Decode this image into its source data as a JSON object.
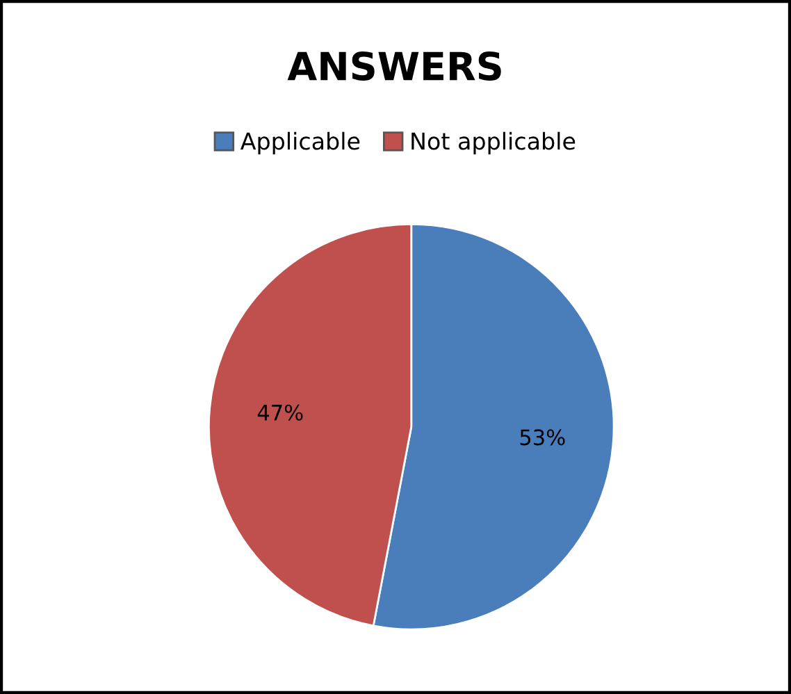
{
  "chart_data": {
    "type": "pie",
    "title": "ANSWERS",
    "categories": [
      "Applicable",
      "Not applicable"
    ],
    "values": [
      53,
      47
    ],
    "colors": [
      "#4a7ebb",
      "#c0504d"
    ],
    "value_labels": [
      "53%",
      "47%"
    ],
    "legend": "top"
  }
}
